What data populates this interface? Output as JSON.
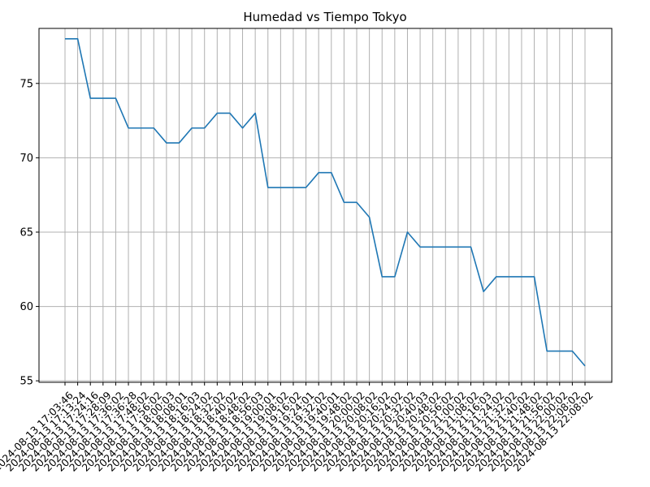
{
  "chart_data": {
    "type": "line",
    "title": "Humedad vs Tiempo Tokyo",
    "xlabel": "",
    "ylabel": "",
    "grid": true,
    "ylim": [
      54.9,
      78.7
    ],
    "yticks": [
      55,
      60,
      65,
      70,
      75
    ],
    "color": "#1f77b4",
    "x": [
      "2024-08-13 17:03:46",
      "2024-08-13 17:13:24",
      "2024-08-13 17:24:16",
      "2024-08-13 17:28:09",
      "2024-08-13 17:36:02",
      "2024-08-13 17:36:28",
      "2024-08-13 17:48:02",
      "2024-08-13 17:56:02",
      "2024-08-13 18:00:03",
      "2024-08-13 18:08:01",
      "2024-08-13 18:16:03",
      "2024-08-13 18:24:02",
      "2024-08-13 18:32:02",
      "2024-08-13 18:40:02",
      "2024-08-13 18:48:02",
      "2024-08-13 18:56:03",
      "2024-08-13 19:00:01",
      "2024-08-13 19:08:02",
      "2024-08-13 19:16:02",
      "2024-08-13 19:24:01",
      "2024-08-13 19:32:02",
      "2024-08-13 19:40:01",
      "2024-08-13 19:48:02",
      "2024-08-13 20:00:02",
      "2024-08-13 20:08:02",
      "2024-08-13 20:16:02",
      "2024-08-13 20:24:02",
      "2024-08-13 20:32:02",
      "2024-08-13 20:40:03",
      "2024-08-13 20:48:02",
      "2024-08-13 20:56:02",
      "2024-08-13 21:00:02",
      "2024-08-13 21:08:02",
      "2024-08-13 21:16:03",
      "2024-08-13 21:24:02",
      "2024-08-13 21:32:02",
      "2024-08-13 21:40:02",
      "2024-08-13 21:48:02",
      "2024-08-13 21:56:02",
      "2024-08-13 22:00:02",
      "2024-08-13 22:08:02",
      "2024-08-13 22:08:02"
    ],
    "values": [
      78,
      78,
      74,
      74,
      74,
      72,
      72,
      72,
      71,
      71,
      72,
      72,
      73,
      73,
      72,
      73,
      68,
      68,
      68,
      68,
      69,
      69,
      67,
      67,
      66,
      62,
      62,
      65,
      64,
      64,
      64,
      64,
      64,
      61,
      62,
      62,
      62,
      62,
      57,
      57,
      57,
      56
    ]
  }
}
